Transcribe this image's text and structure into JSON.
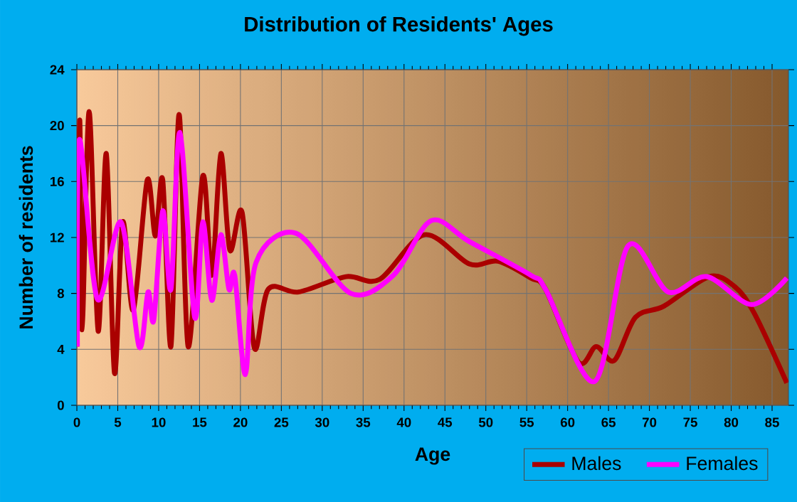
{
  "chart_data": {
    "type": "line",
    "title": "Distribution of Residents' Ages",
    "xlabel": "Age",
    "ylabel": "Number of residents",
    "xlim": [
      0,
      87
    ],
    "ylim": [
      0,
      24
    ],
    "xticks": [
      0,
      5,
      10,
      15,
      20,
      25,
      30,
      35,
      40,
      45,
      50,
      55,
      60,
      65,
      70,
      75,
      80,
      85
    ],
    "yticks": [
      0,
      4,
      8,
      12,
      16,
      20,
      24
    ],
    "grid": true,
    "legend": "bottom right",
    "series": [
      {
        "name": "Males",
        "color": "#aa0000",
        "x": [
          0,
          0.35,
          0.64,
          1.5,
          2.6,
          3.6,
          4.6,
          5.6,
          6.9,
          8.6,
          9.6,
          10.5,
          11.5,
          12.5,
          13.6,
          15.4,
          16.5,
          17.6,
          18.7,
          20.2,
          21.7,
          23.4,
          27.1,
          32.9,
          37,
          42.5,
          48,
          51.5,
          55.5,
          57.3,
          61.3,
          63.5,
          65.7,
          68.3,
          71.8,
          77.3,
          80.4,
          82.8,
          86.8
        ],
        "values": [
          4.2,
          20.4,
          5.4,
          21,
          5.3,
          18,
          2.3,
          13.1,
          6.8,
          16.1,
          12.1,
          16.1,
          4.2,
          20.8,
          4.2,
          16.4,
          9.3,
          18,
          11.1,
          13.8,
          4.1,
          8.3,
          8.1,
          9.2,
          9,
          12.2,
          10.1,
          10.3,
          9.1,
          8.3,
          3.1,
          4.2,
          3.2,
          6.3,
          7.1,
          9.2,
          8.5,
          6.6,
          1.6
        ]
      },
      {
        "name": "Females",
        "color": "#ff00ff",
        "x": [
          0.06,
          0.3,
          2.5,
          5.4,
          7.6,
          8.7,
          9.4,
          10.5,
          11.5,
          12.6,
          14.4,
          15.4,
          16.5,
          17.6,
          18.6,
          19.3,
          20.6,
          21.9,
          26.8,
          33.5,
          38.7,
          43.3,
          48,
          55.5,
          57.3,
          63.3,
          67.4,
          72.3,
          77,
          82.5,
          86.8
        ],
        "values": [
          4.2,
          19,
          7.6,
          13.1,
          4.2,
          8.1,
          6.1,
          13.9,
          8.3,
          19.5,
          6.3,
          13.1,
          7.5,
          12.2,
          8.3,
          9.3,
          2.2,
          10.2,
          12.3,
          8,
          9.3,
          13.2,
          11.7,
          9.3,
          8.3,
          1.7,
          11.4,
          8.1,
          9.2,
          7.2,
          9.1
        ]
      }
    ]
  }
}
